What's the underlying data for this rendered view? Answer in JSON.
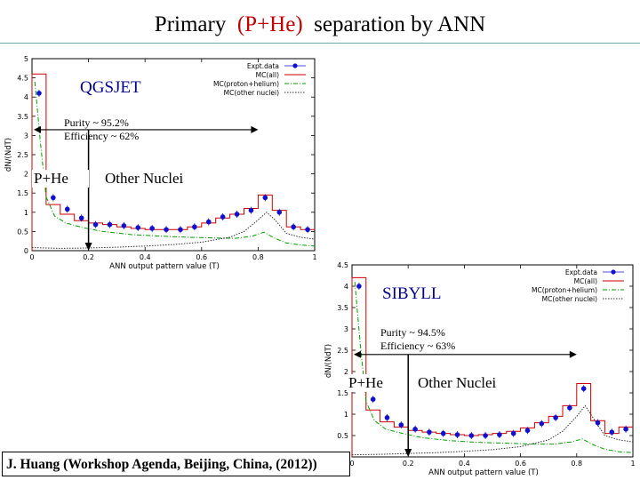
{
  "slide": {
    "title_pre": "Primary",
    "title_accent": "(P+He)",
    "title_post": "separation by ANN",
    "footer": "J. Huang  (Workshop  Agenda,  Beijing,  China, (2012))"
  },
  "colors": {
    "expt": "#1010d0",
    "mc_all": "#cc0000",
    "mc_ph": "#00a000",
    "mc_other": "#333333",
    "accent": "#c00000",
    "rule": "#6fa8a8",
    "model_label": "#00008b"
  },
  "chart_data": [
    {
      "type": "line",
      "model_label": "QGSJET",
      "purity": "Purity ~ 95.2%",
      "efficiency": "Efficiency ~ 62%",
      "left_label": "P+He",
      "right_label": "Other Nuclei",
      "xlabel": "ANN output pattern value (T)",
      "ylabel": "dN/(NdT)",
      "xlim": [
        0,
        1
      ],
      "ylim": [
        0,
        5
      ],
      "xticks": [
        "0",
        "0.2",
        "0.4",
        "0.6",
        "0.8",
        "1"
      ],
      "yticks": [
        "0",
        "0.5",
        "1",
        "1.5",
        "2",
        "2.5",
        "3",
        "3.5",
        "4",
        "4.5",
        "5"
      ],
      "cut": 0.2,
      "arrow_to": 0.8,
      "arrow_y": 3.15,
      "legend": [
        "Expt.data",
        "MC(all)",
        "MC(proton+helium)",
        "MC(other nuclei)"
      ],
      "legend_position": "top-right",
      "expt": {
        "x": [
          0.025,
          0.075,
          0.125,
          0.175,
          0.225,
          0.275,
          0.325,
          0.375,
          0.425,
          0.475,
          0.525,
          0.575,
          0.625,
          0.675,
          0.725,
          0.775,
          0.825,
          0.875,
          0.925,
          0.975
        ],
        "y": [
          4.1,
          1.38,
          1.08,
          0.85,
          0.68,
          0.68,
          0.65,
          0.6,
          0.58,
          0.55,
          0.55,
          0.62,
          0.75,
          0.88,
          0.95,
          1.05,
          1.38,
          1.0,
          0.62,
          0.55
        ]
      },
      "mc_all": {
        "edges": [
          0,
          0.05,
          0.1,
          0.15,
          0.2,
          0.25,
          0.3,
          0.35,
          0.4,
          0.45,
          0.5,
          0.55,
          0.6,
          0.65,
          0.7,
          0.75,
          0.8,
          0.85,
          0.9,
          0.95,
          1.0
        ],
        "y": [
          4.6,
          1.2,
          0.95,
          0.78,
          0.72,
          0.68,
          0.62,
          0.58,
          0.55,
          0.55,
          0.55,
          0.62,
          0.72,
          0.85,
          0.95,
          1.1,
          1.45,
          1.05,
          0.62,
          0.55
        ]
      },
      "mc_ph": {
        "x": [
          0.01,
          0.03,
          0.05,
          0.08,
          0.12,
          0.18,
          0.25,
          0.35,
          0.45,
          0.55,
          0.65,
          0.72,
          0.78,
          0.82,
          0.86,
          0.9,
          0.95,
          1.0
        ],
        "y": [
          4.4,
          2.8,
          1.4,
          0.9,
          0.72,
          0.6,
          0.5,
          0.42,
          0.38,
          0.35,
          0.33,
          0.32,
          0.38,
          0.48,
          0.32,
          0.2,
          0.15,
          0.12
        ]
      },
      "mc_other": {
        "x": [
          0,
          0.1,
          0.2,
          0.3,
          0.4,
          0.5,
          0.6,
          0.7,
          0.75,
          0.8,
          0.83,
          0.86,
          0.9,
          0.95,
          1.0
        ],
        "y": [
          0.08,
          0.06,
          0.07,
          0.09,
          0.12,
          0.16,
          0.22,
          0.35,
          0.5,
          0.8,
          1.0,
          0.8,
          0.45,
          0.35,
          0.3
        ]
      }
    },
    {
      "type": "line",
      "model_label": "SIBYLL",
      "purity": "Purity ~ 94.5%",
      "efficiency": "Efficiency ~ 63%",
      "left_label": "P+He",
      "right_label": "Other Nuclei",
      "xlabel": "ANN output pattern value (T)",
      "ylabel": "dN/(NdT)",
      "xlim": [
        0,
        1
      ],
      "ylim": [
        0,
        4.5
      ],
      "xticks": [
        "0",
        "0.2",
        "0.4",
        "0.6",
        "0.8",
        "1"
      ],
      "yticks": [
        "0",
        "0.5",
        "1",
        "1.5",
        "2",
        "2.5",
        "3",
        "3.5",
        "4",
        "4.5"
      ],
      "cut": 0.2,
      "arrow_to": 0.8,
      "arrow_y": 2.4,
      "legend": [
        "Expt.data",
        "MC(all)",
        "MC(proton+helium)",
        "MC(other nuclei)"
      ],
      "legend_position": "top-right",
      "expt": {
        "x": [
          0.025,
          0.075,
          0.125,
          0.175,
          0.225,
          0.275,
          0.325,
          0.375,
          0.425,
          0.475,
          0.525,
          0.575,
          0.625,
          0.675,
          0.725,
          0.775,
          0.825,
          0.875,
          0.925,
          0.975
        ],
        "y": [
          4.0,
          1.35,
          0.92,
          0.75,
          0.65,
          0.58,
          0.55,
          0.52,
          0.5,
          0.5,
          0.52,
          0.55,
          0.62,
          0.78,
          0.92,
          1.15,
          1.6,
          0.8,
          0.58,
          0.65
        ]
      },
      "mc_all": {
        "edges": [
          0,
          0.05,
          0.1,
          0.15,
          0.2,
          0.25,
          0.3,
          0.35,
          0.4,
          0.45,
          0.5,
          0.55,
          0.6,
          0.65,
          0.7,
          0.75,
          0.8,
          0.85,
          0.9,
          0.95,
          1.0
        ],
        "y": [
          4.2,
          1.1,
          0.82,
          0.7,
          0.62,
          0.58,
          0.55,
          0.52,
          0.5,
          0.52,
          0.55,
          0.6,
          0.68,
          0.8,
          0.95,
          1.2,
          1.72,
          0.85,
          0.55,
          0.7
        ]
      },
      "mc_ph": {
        "x": [
          0.01,
          0.03,
          0.05,
          0.08,
          0.12,
          0.18,
          0.25,
          0.35,
          0.45,
          0.55,
          0.65,
          0.72,
          0.78,
          0.82,
          0.86,
          0.9,
          0.95,
          1.0
        ],
        "y": [
          4.1,
          2.6,
          1.3,
          0.85,
          0.65,
          0.55,
          0.45,
          0.38,
          0.34,
          0.32,
          0.3,
          0.3,
          0.35,
          0.42,
          0.28,
          0.18,
          0.12,
          0.1
        ]
      },
      "mc_other": {
        "x": [
          0,
          0.1,
          0.2,
          0.3,
          0.4,
          0.5,
          0.6,
          0.7,
          0.75,
          0.8,
          0.83,
          0.86,
          0.9,
          0.95,
          1.0
        ],
        "y": [
          0.05,
          0.06,
          0.08,
          0.1,
          0.13,
          0.17,
          0.24,
          0.4,
          0.6,
          0.95,
          1.2,
          0.9,
          0.5,
          0.4,
          0.35
        ]
      }
    }
  ]
}
